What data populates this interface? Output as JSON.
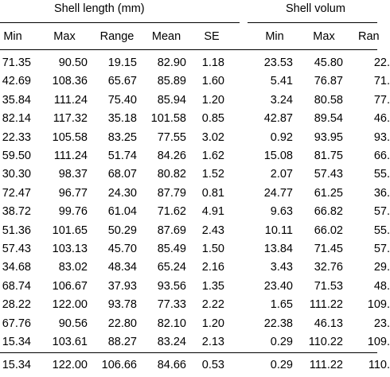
{
  "table": {
    "group_headers": [
      "Shell length (mm)",
      "Shell volum"
    ],
    "columns": [
      "Min",
      "Max",
      "Range",
      "Mean",
      "SE",
      "Min",
      "Max",
      "Ran"
    ],
    "rows": [
      [
        "71.35",
        "90.50",
        "19.15",
        "82.90",
        "1.18",
        "23.53",
        "45.80",
        "22."
      ],
      [
        "42.69",
        "108.36",
        "65.67",
        "85.89",
        "1.60",
        "5.41",
        "76.87",
        "71."
      ],
      [
        "35.84",
        "111.24",
        "75.40",
        "85.94",
        "1.20",
        "3.24",
        "80.58",
        "77."
      ],
      [
        "82.14",
        "117.32",
        "35.18",
        "101.58",
        "0.85",
        "42.87",
        "89.54",
        "46."
      ],
      [
        "22.33",
        "105.58",
        "83.25",
        "77.55",
        "3.02",
        "0.92",
        "93.95",
        "93."
      ],
      [
        "59.50",
        "111.24",
        "51.74",
        "84.26",
        "1.62",
        "15.08",
        "81.75",
        "66."
      ],
      [
        "30.30",
        "98.37",
        "68.07",
        "80.82",
        "1.52",
        "2.07",
        "57.43",
        "55."
      ],
      [
        "72.47",
        "96.77",
        "24.30",
        "87.79",
        "0.81",
        "24.77",
        "61.25",
        "36."
      ],
      [
        "38.72",
        "99.76",
        "61.04",
        "71.62",
        "4.91",
        "9.63",
        "66.82",
        "57."
      ],
      [
        "51.36",
        "101.65",
        "50.29",
        "87.69",
        "2.43",
        "10.11",
        "66.02",
        "55."
      ],
      [
        "57.43",
        "103.13",
        "45.70",
        "85.49",
        "1.50",
        "13.84",
        "71.45",
        "57."
      ],
      [
        "34.68",
        "83.02",
        "48.34",
        "65.24",
        "2.16",
        "3.43",
        "32.76",
        "29."
      ],
      [
        "68.74",
        "106.67",
        "37.93",
        "93.56",
        "1.35",
        "23.40",
        "71.53",
        "48."
      ],
      [
        "28.22",
        "122.00",
        "93.78",
        "77.33",
        "2.22",
        "1.65",
        "111.22",
        "109."
      ],
      [
        "67.76",
        "90.56",
        "22.80",
        "82.10",
        "1.20",
        "22.38",
        "46.13",
        "23."
      ],
      [
        "15.34",
        "103.61",
        "88.27",
        "83.24",
        "2.13",
        "0.29",
        "110.22",
        "109."
      ]
    ],
    "total": [
      "15.34",
      "122.00",
      "106.66",
      "84.66",
      "0.53",
      "0.29",
      "111.22",
      "110."
    ]
  }
}
